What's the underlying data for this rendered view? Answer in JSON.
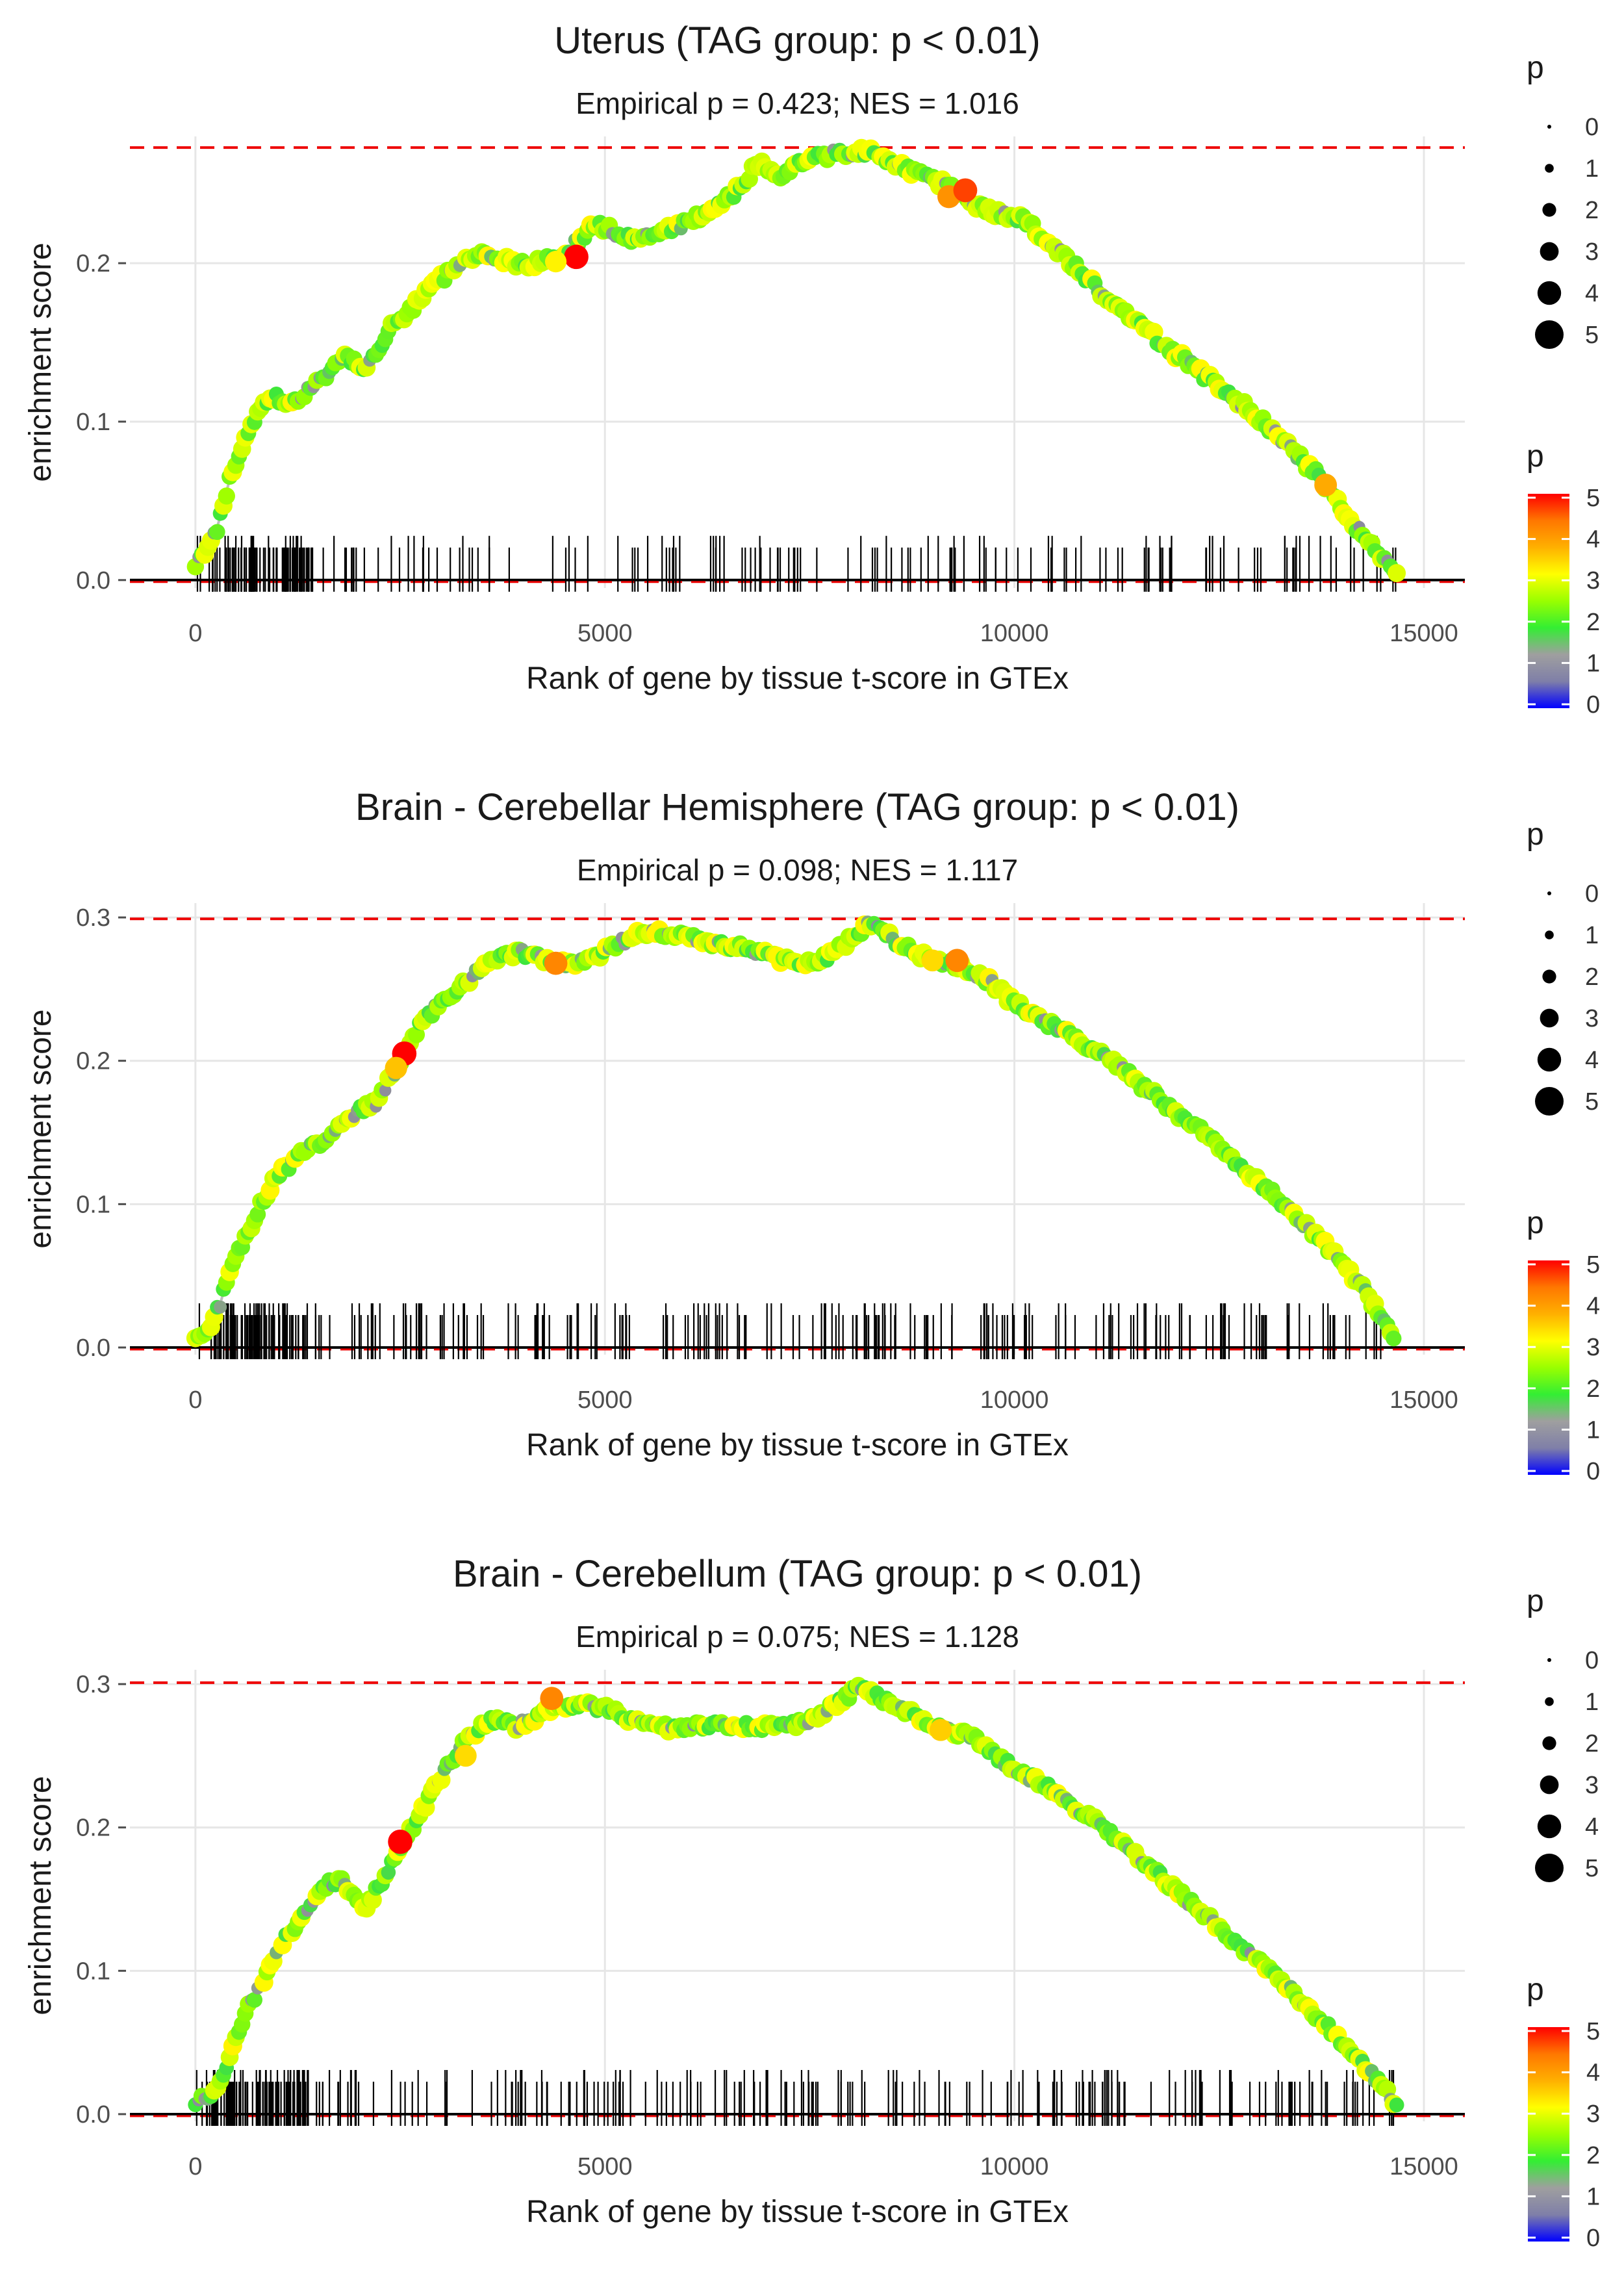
{
  "chart_data": [
    {
      "type": "line",
      "title": "Uterus (TAG group: p < 0.01)",
      "subtitle": "Empirical p = 0.423; NES = 1.016",
      "xlabel": "Rank of gene by tissue t-score in GTEx",
      "ylabel": "enrichment score",
      "xlim": [
        -800,
        15500
      ],
      "ylim": [
        -0.005,
        0.28
      ],
      "x_ticks": [
        0,
        5000,
        10000,
        15000
      ],
      "y_ticks": [
        0.0,
        0.1,
        0.2
      ],
      "y_tick_labels": [
        "0.0",
        "0.1",
        "0.2"
      ],
      "max_es": 0.273,
      "max_es_line": "red dashed",
      "gene_count_approx": 230,
      "x": [
        0,
        100,
        250,
        400,
        600,
        800,
        1000,
        1200,
        1500,
        1800,
        2100,
        2400,
        2700,
        3000,
        3300,
        3600,
        3900,
        4200,
        4500,
        4700,
        4900,
        5100,
        5400,
        5700,
        6000,
        6300,
        6600,
        6900,
        7100,
        7400,
        7700,
        8000,
        8300,
        8600,
        8900,
        9200,
        9500,
        9800,
        10100,
        10400,
        10700,
        11000,
        11300,
        11600,
        11900,
        12200,
        12500,
        12800,
        13100,
        13400,
        13700,
        14000,
        14300,
        14600,
        14700
      ],
      "y": [
        0.01,
        0.015,
        0.03,
        0.06,
        0.09,
        0.11,
        0.115,
        0.112,
        0.125,
        0.14,
        0.135,
        0.16,
        0.175,
        0.19,
        0.205,
        0.205,
        0.2,
        0.2,
        0.205,
        0.215,
        0.225,
        0.22,
        0.215,
        0.22,
        0.225,
        0.235,
        0.245,
        0.265,
        0.255,
        0.265,
        0.268,
        0.27,
        0.27,
        0.262,
        0.255,
        0.248,
        0.238,
        0.232,
        0.228,
        0.215,
        0.2,
        0.185,
        0.17,
        0.158,
        0.146,
        0.134,
        0.122,
        0.11,
        0.097,
        0.082,
        0.066,
        0.045,
        0.025,
        0.01,
        0.003
      ],
      "highlight_points": [
        {
          "x": 4650,
          "y": 0.204,
          "p": 5
        },
        {
          "x": 4400,
          "y": 0.201,
          "p": 3.4
        },
        {
          "x": 9200,
          "y": 0.242,
          "p": 4.2
        },
        {
          "x": 9400,
          "y": 0.246,
          "p": 4.7
        },
        {
          "x": 13800,
          "y": 0.06,
          "p": 4
        }
      ],
      "legend_size": {
        "title": "p",
        "values": [
          0,
          1,
          2,
          3,
          4,
          5
        ]
      },
      "legend_color": {
        "title": "p",
        "values": [
          0,
          1,
          2,
          3,
          4,
          5
        ]
      }
    },
    {
      "type": "line",
      "title": "Brain - Cerebellar Hemisphere (TAG group: p < 0.01)",
      "subtitle": "Empirical p = 0.098; NES = 1.117",
      "xlabel": "Rank of gene by tissue t-score in GTEx",
      "ylabel": "enrichment score",
      "xlim": [
        -800,
        15500
      ],
      "ylim": [
        -0.005,
        0.31
      ],
      "x_ticks": [
        0,
        5000,
        10000,
        15000
      ],
      "y_ticks": [
        0.0,
        0.1,
        0.2,
        0.3
      ],
      "y_tick_labels": [
        "0.0",
        "0.1",
        "0.2",
        "0.3"
      ],
      "max_es": 0.299,
      "max_es_line": "red dashed",
      "gene_count_approx": 300,
      "x": [
        0,
        150,
        300,
        450,
        600,
        800,
        1000,
        1200,
        1400,
        1600,
        1800,
        2000,
        2200,
        2400,
        2600,
        2800,
        3000,
        3200,
        3400,
        3600,
        3800,
        4000,
        4200,
        4500,
        4800,
        5100,
        5400,
        5700,
        6000,
        6300,
        6600,
        6900,
        7200,
        7500,
        7800,
        8100,
        8300,
        8500,
        8800,
        9100,
        9400,
        9700,
        10000,
        10300,
        10600,
        10900,
        11200,
        11500,
        11800,
        12100,
        12400,
        12700,
        13000,
        13300,
        13600,
        13900,
        14200,
        14500,
        14650
      ],
      "y": [
        0.008,
        0.012,
        0.03,
        0.06,
        0.075,
        0.1,
        0.12,
        0.13,
        0.14,
        0.145,
        0.155,
        0.165,
        0.17,
        0.19,
        0.21,
        0.23,
        0.24,
        0.25,
        0.26,
        0.27,
        0.275,
        0.275,
        0.272,
        0.268,
        0.27,
        0.28,
        0.288,
        0.289,
        0.287,
        0.283,
        0.28,
        0.276,
        0.27,
        0.268,
        0.275,
        0.29,
        0.298,
        0.285,
        0.275,
        0.27,
        0.265,
        0.255,
        0.24,
        0.23,
        0.22,
        0.21,
        0.2,
        0.185,
        0.172,
        0.158,
        0.146,
        0.13,
        0.115,
        0.1,
        0.083,
        0.065,
        0.045,
        0.02,
        0.005
      ],
      "highlight_points": [
        {
          "x": 2550,
          "y": 0.205,
          "p": 5
        },
        {
          "x": 2450,
          "y": 0.195,
          "p": 3.8
        },
        {
          "x": 4400,
          "y": 0.268,
          "p": 4.3
        },
        {
          "x": 9000,
          "y": 0.27,
          "p": 3.6
        },
        {
          "x": 9300,
          "y": 0.27,
          "p": 4.3
        }
      ],
      "legend_size": {
        "title": "p",
        "values": [
          0,
          1,
          2,
          3,
          4,
          5
        ]
      },
      "legend_color": {
        "title": "p",
        "values": [
          0,
          1,
          2,
          3,
          4,
          5
        ]
      }
    },
    {
      "type": "line",
      "title": "Brain - Cerebellum (TAG group: p < 0.01)",
      "subtitle": "Empirical p = 0.075; NES = 1.128",
      "xlabel": "Rank of gene by tissue t-score in GTEx",
      "ylabel": "enrichment score",
      "xlim": [
        -800,
        15500
      ],
      "ylim": [
        -0.005,
        0.31
      ],
      "x_ticks": [
        0,
        5000,
        10000,
        15000
      ],
      "y_ticks": [
        0.0,
        0.1,
        0.2,
        0.3
      ],
      "y_tick_labels": [
        "0.0",
        "0.1",
        "0.2",
        "0.3"
      ],
      "max_es": 0.301,
      "max_es_line": "red dashed",
      "gene_count_approx": 300,
      "x": [
        0,
        150,
        300,
        450,
        600,
        800,
        1000,
        1200,
        1400,
        1600,
        1800,
        1950,
        2100,
        2300,
        2500,
        2700,
        2900,
        3100,
        3300,
        3500,
        3700,
        3900,
        4100,
        4300,
        4500,
        4800,
        5100,
        5400,
        5700,
        6000,
        6300,
        6600,
        6900,
        7200,
        7500,
        7800,
        8100,
        8300,
        8600,
        8900,
        9200,
        9500,
        9800,
        10100,
        10400,
        10700,
        11000,
        11300,
        11600,
        11900,
        12200,
        12500,
        12800,
        13100,
        13400,
        13700,
        14000,
        14300,
        14550,
        14700
      ],
      "y": [
        0.008,
        0.012,
        0.02,
        0.045,
        0.07,
        0.09,
        0.115,
        0.13,
        0.145,
        0.16,
        0.162,
        0.15,
        0.145,
        0.165,
        0.185,
        0.205,
        0.225,
        0.245,
        0.26,
        0.272,
        0.275,
        0.27,
        0.275,
        0.282,
        0.284,
        0.285,
        0.282,
        0.273,
        0.27,
        0.27,
        0.271,
        0.272,
        0.27,
        0.271,
        0.275,
        0.285,
        0.298,
        0.292,
        0.284,
        0.275,
        0.268,
        0.262,
        0.248,
        0.238,
        0.228,
        0.216,
        0.204,
        0.19,
        0.175,
        0.16,
        0.145,
        0.13,
        0.115,
        0.1,
        0.085,
        0.068,
        0.05,
        0.032,
        0.015,
        0.005
      ],
      "highlight_points": [
        {
          "x": 2500,
          "y": 0.19,
          "p": 5
        },
        {
          "x": 3300,
          "y": 0.25,
          "p": 3.6
        },
        {
          "x": 4350,
          "y": 0.29,
          "p": 4.3
        },
        {
          "x": 9100,
          "y": 0.268,
          "p": 3.7
        }
      ],
      "legend_size": {
        "title": "p",
        "values": [
          0,
          1,
          2,
          3,
          4,
          5
        ]
      },
      "legend_color": {
        "title": "p",
        "values": [
          0,
          1,
          2,
          3,
          4,
          5
        ]
      }
    }
  ],
  "colors": {
    "max_line": "#ee0000",
    "curve": "#bdbdbd",
    "grid": "#e6e6e6",
    "rug": "#000000",
    "colorbar": [
      "#0000ff",
      "#7f7fa8",
      "#9f9f9f",
      "#33ee33",
      "#99ff00",
      "#ffff00",
      "#ffb000",
      "#ff7700",
      "#ff0000"
    ]
  }
}
